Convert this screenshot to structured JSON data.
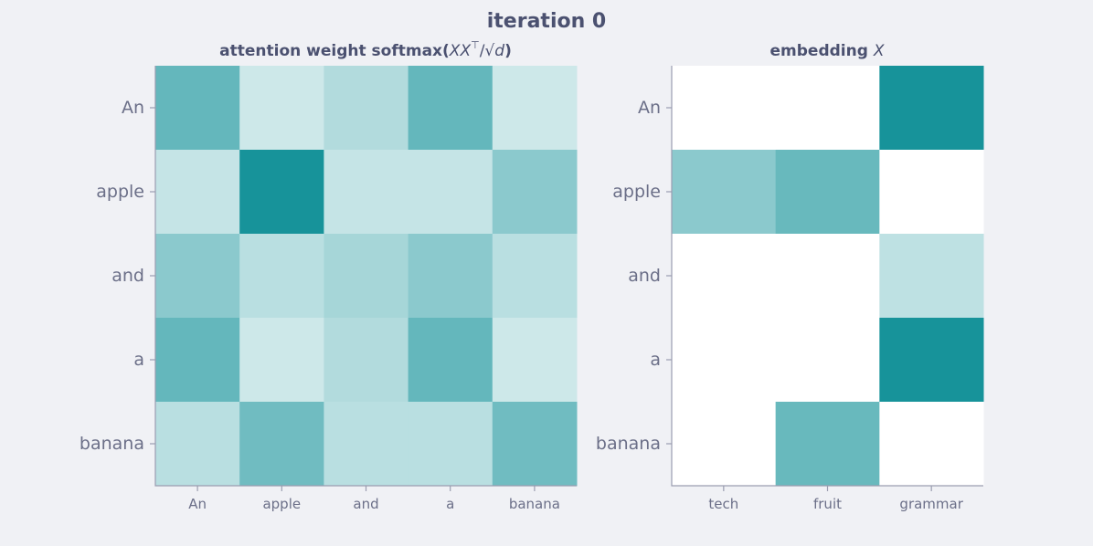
{
  "figure_title": "iteration 0",
  "chart_data": [
    {
      "type": "heatmap",
      "title": "attention weight  softmax(XX⊤/√d)",
      "title_parts": {
        "prefix": "attention weight  softmax(",
        "math_1": "XX",
        "sup": "⊤",
        "slash": "/",
        "sqrt": "√",
        "math_2": "d",
        "suffix": ")"
      },
      "rows": [
        "An",
        "apple",
        "and",
        "a",
        "banana"
      ],
      "cols": [
        "An",
        "apple",
        "and",
        "a",
        "banana"
      ],
      "values": [
        [
          0.4,
          0.13,
          0.2,
          0.4,
          0.13
        ],
        [
          0.15,
          0.6,
          0.15,
          0.15,
          0.3
        ],
        [
          0.3,
          0.18,
          0.23,
          0.3,
          0.18
        ],
        [
          0.4,
          0.13,
          0.2,
          0.4,
          0.13
        ],
        [
          0.18,
          0.37,
          0.18,
          0.18,
          0.37
        ]
      ],
      "vmin": 0,
      "vmax": 0.6
    },
    {
      "type": "heatmap",
      "title": "embedding  X",
      "title_parts": {
        "prefix": "embedding  ",
        "math": "X"
      },
      "rows": [
        "An",
        "apple",
        "and",
        "a",
        "banana"
      ],
      "cols": [
        "tech",
        "fruit",
        "grammar"
      ],
      "values": [
        [
          0,
          0,
          1.0
        ],
        [
          0.5,
          0.65,
          0
        ],
        [
          0,
          0,
          0.28
        ],
        [
          0,
          0,
          1.0
        ],
        [
          0,
          0.65,
          0
        ]
      ],
      "vmin": 0,
      "vmax": 1.0
    }
  ],
  "colors": {
    "high": "#17939a",
    "low": "#ffffff",
    "background": "#f0f1f5",
    "text": "#4b5170",
    "axis": "#9a9db0"
  }
}
